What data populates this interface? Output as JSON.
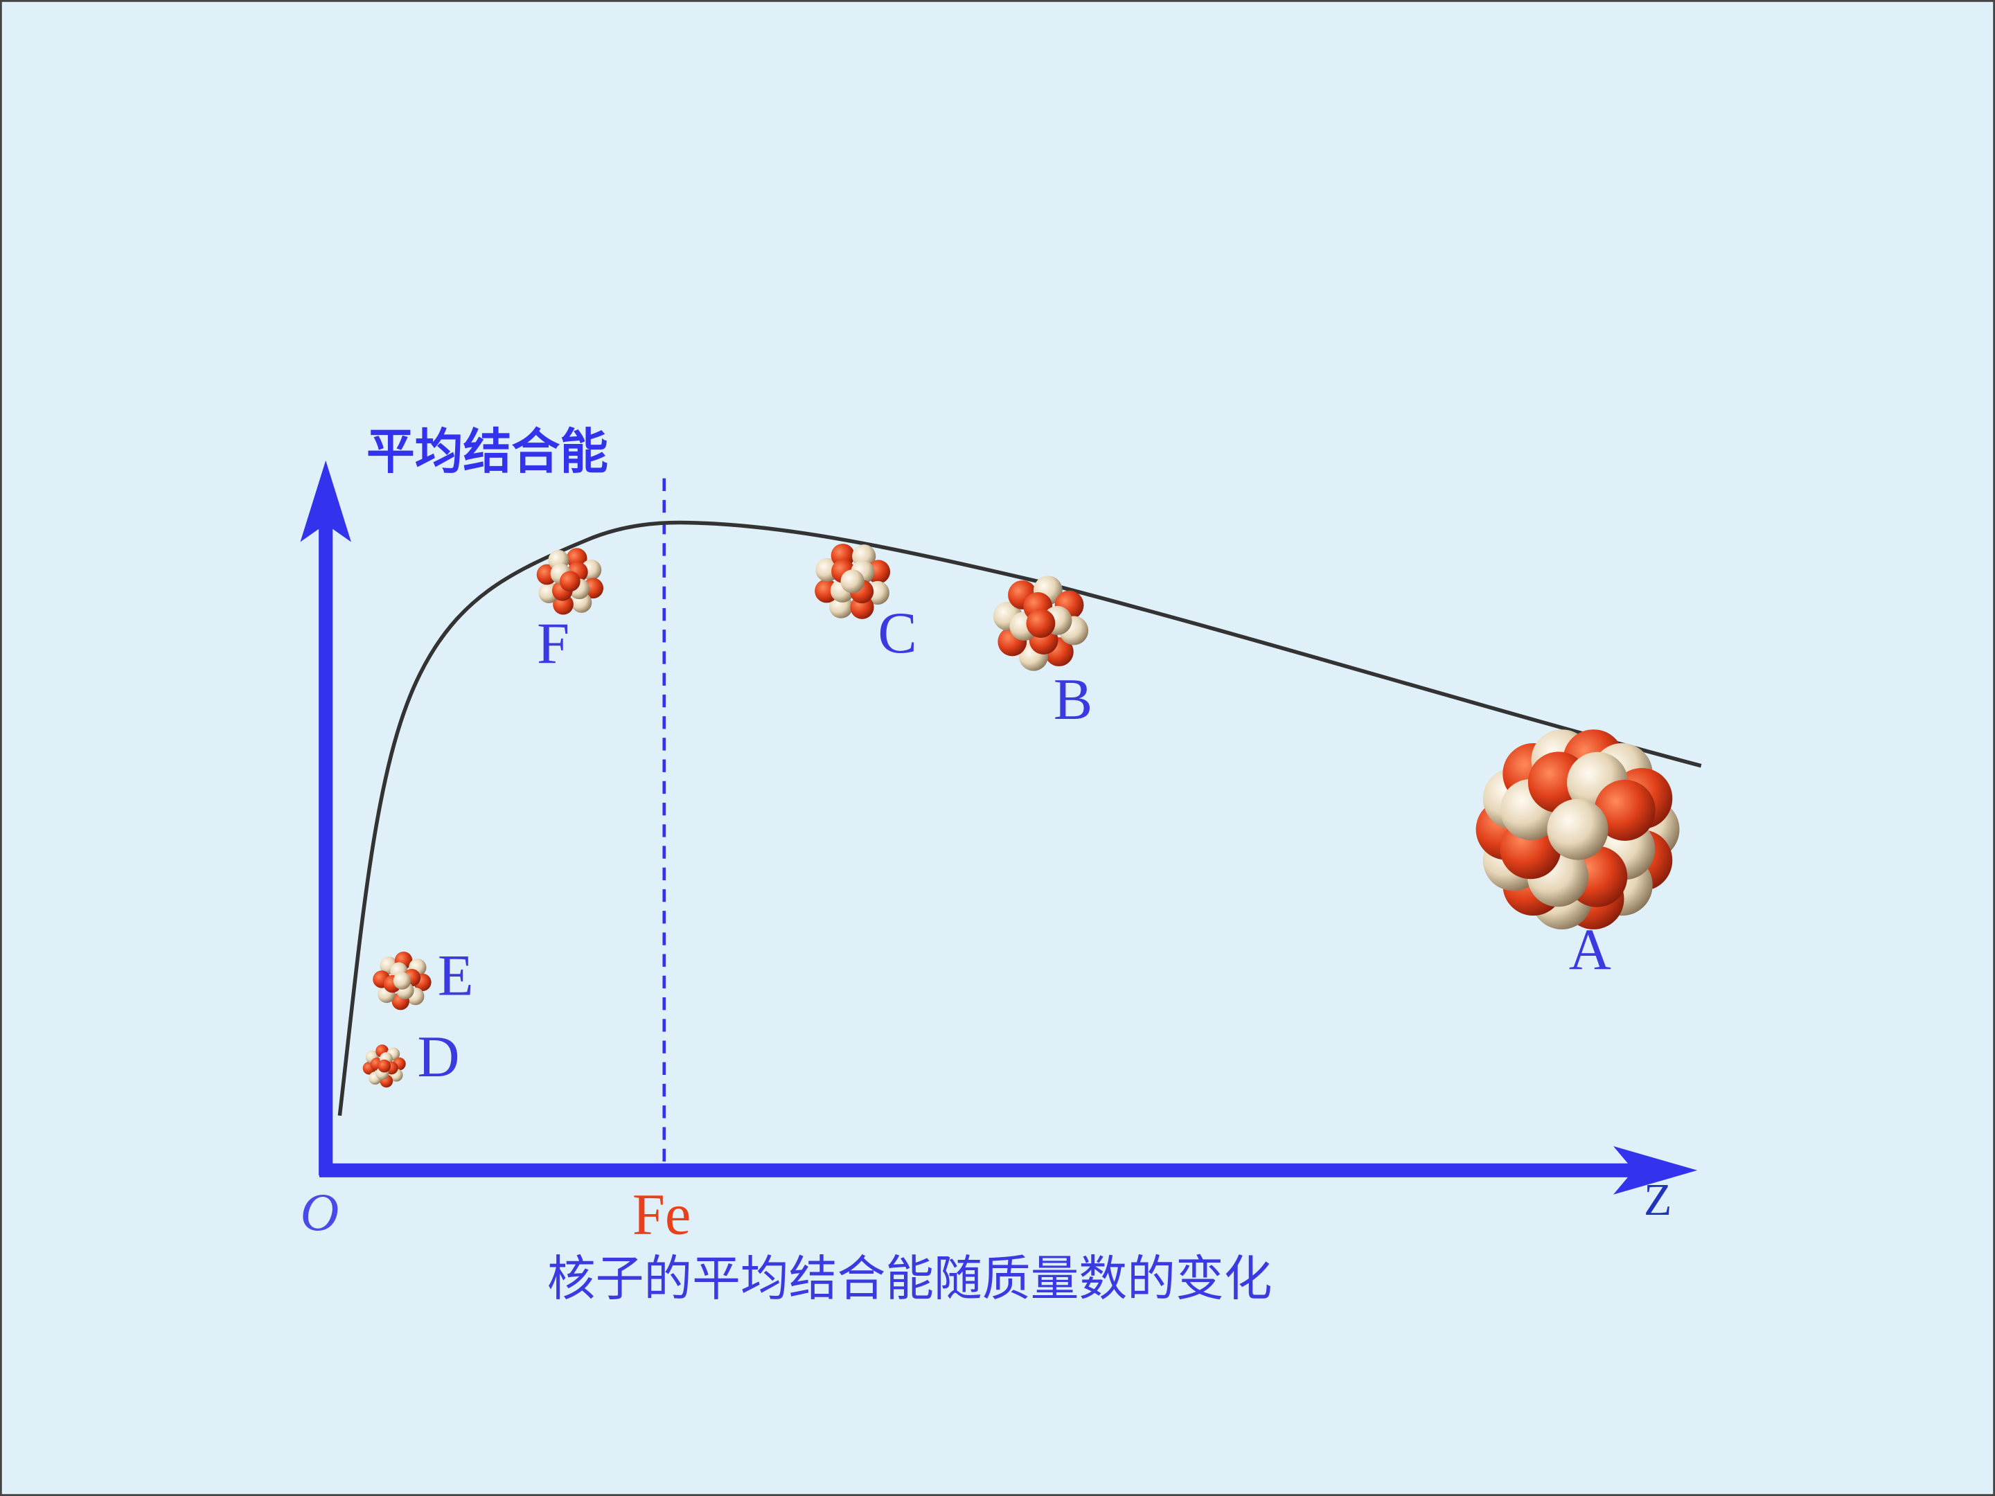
{
  "y_axis_label": "平均结合能",
  "origin_label": "O",
  "x_axis_label": "Z",
  "fe_label": "Fe",
  "caption": "核子的平均结合能随质量数的变化",
  "point_labels": [
    "A",
    "B",
    "C",
    "D",
    "E",
    "F"
  ]
}
